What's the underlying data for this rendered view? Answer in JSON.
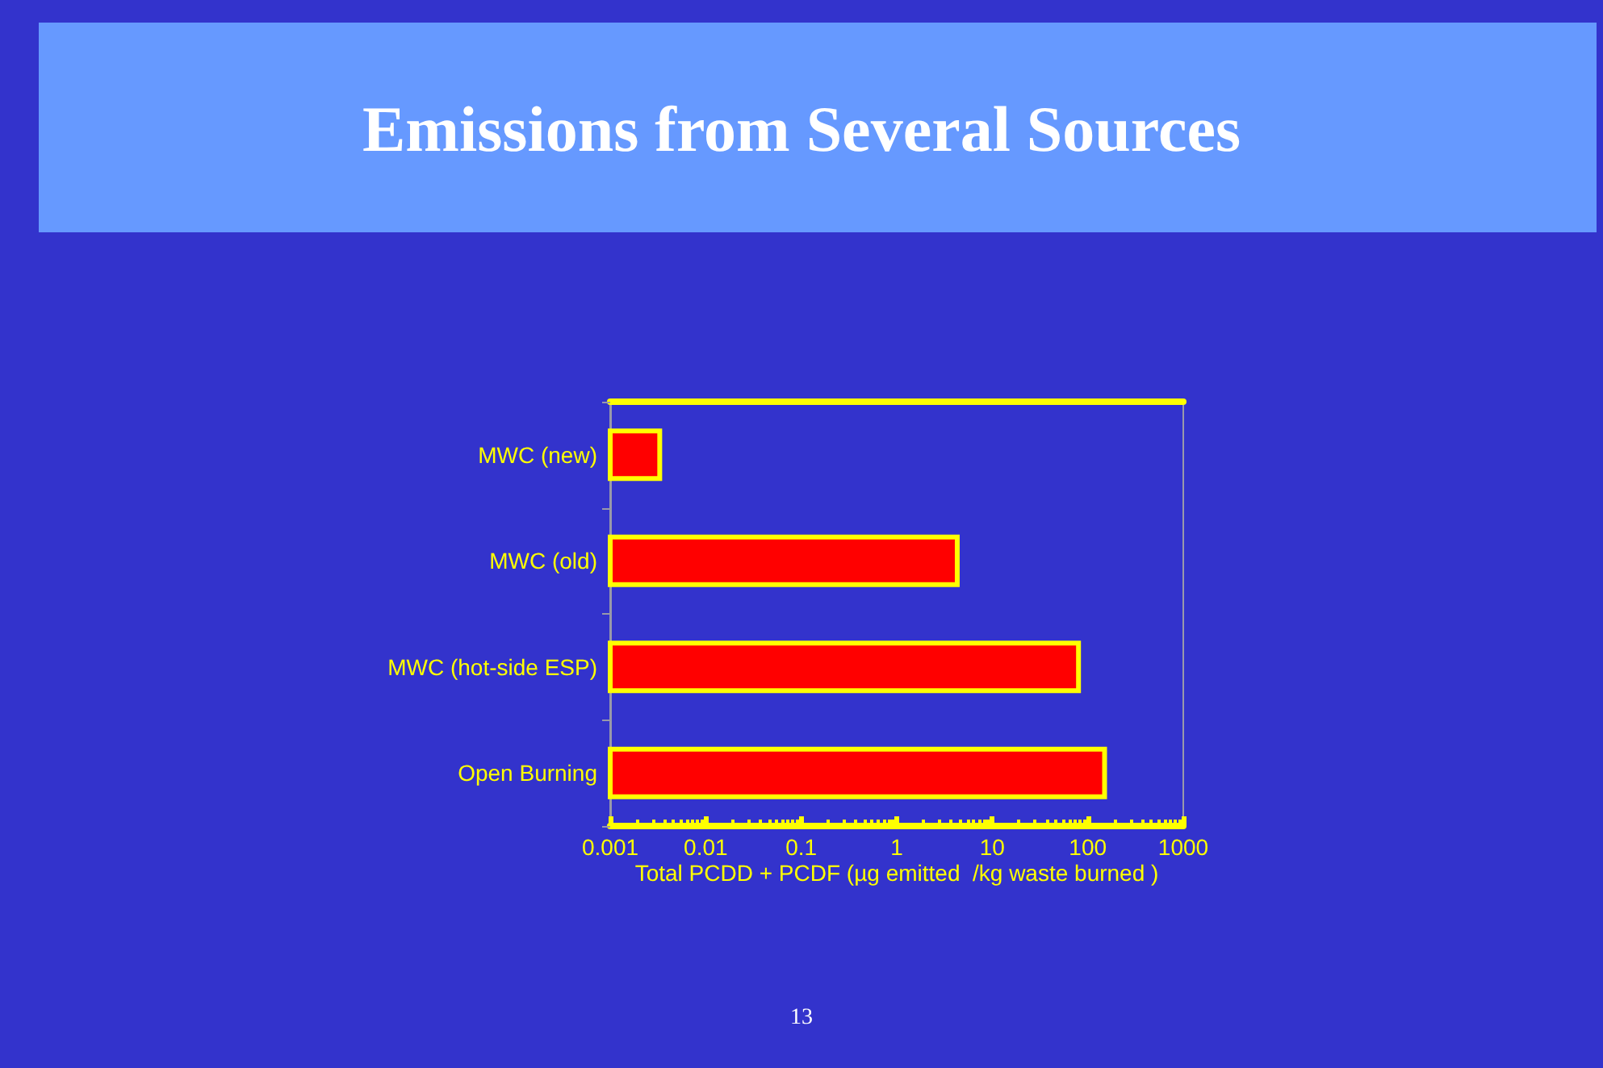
{
  "chart_data": {
    "type": "bar",
    "orientation": "horizontal",
    "title": "Emissions from Several Sources",
    "categories": [
      "MWC (new)",
      "MWC (old)",
      "MWC (hot-side ESP)",
      "Open Burning"
    ],
    "values": [
      0.0033,
      4.3,
      80,
      150
    ],
    "color": "#ff0000",
    "xlabel": "Total PCDD + PCDF (µg emitted  /kg waste burned )",
    "log": "x",
    "xlim": [
      0.001,
      1000
    ],
    "xticks": [
      0.001,
      0.01,
      0.1,
      1,
      10,
      100,
      1000
    ],
    "grid": false,
    "annotations": [
      "13"
    ]
  }
}
